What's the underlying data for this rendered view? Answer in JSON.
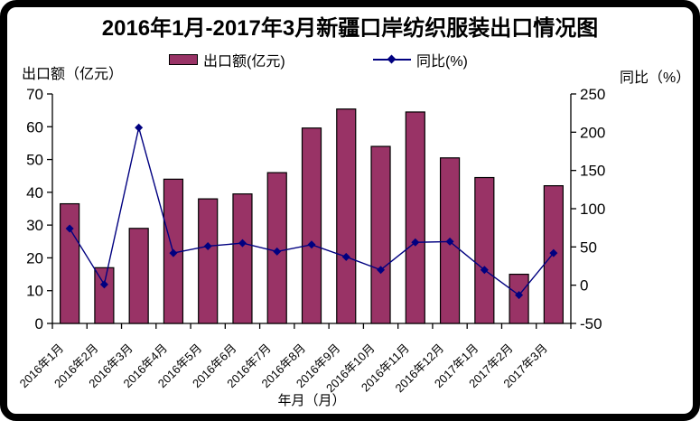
{
  "title": "2016年1月-2017年3月新疆口岸纺织服装出口情况图",
  "legend": {
    "bar_label": "出口额(亿元)",
    "line_label": "同比(%)"
  },
  "axis_titles": {
    "left": "出口额（亿元）",
    "right": "同比（%）",
    "x": "年月（月）"
  },
  "colors": {
    "bar_fill": "#993366",
    "bar_border": "#000000",
    "line": "#000080",
    "axis": "#000000",
    "text": "#000000",
    "frame": "#000000",
    "background": "#ffffff"
  },
  "chart_data": {
    "type": "bar+line",
    "title": "2016年1月-2017年3月新疆口岸纺织服装出口情况图",
    "categories": [
      "2016年1月",
      "2016年2月",
      "2016年3月",
      "2016年4月",
      "2016年5月",
      "2016年6月",
      "2016年7月",
      "2016年8月",
      "2016年9月",
      "2016年10月",
      "2016年11月",
      "2016年12月",
      "2017年1月",
      "2017年2月",
      "2017年3月"
    ],
    "series": [
      {
        "name": "出口额(亿元)",
        "type": "bar",
        "axis": "left",
        "values": [
          36.5,
          17,
          29,
          44,
          38,
          39.5,
          46,
          59.6,
          65.4,
          54,
          64.5,
          50.5,
          44.5,
          15,
          42
        ]
      },
      {
        "name": "同比(%)",
        "type": "line",
        "axis": "right",
        "marker": "diamond",
        "values": [
          74,
          1,
          206,
          42,
          51,
          55,
          44,
          53,
          37,
          20,
          56,
          57,
          20,
          -13,
          42
        ]
      }
    ],
    "left_axis": {
      "title": "出口额（亿元）",
      "min": 0,
      "max": 70,
      "step": 10
    },
    "right_axis": {
      "title": "同比（%）",
      "min": -50,
      "max": 250,
      "step": 50
    },
    "x_title": "年月（月）",
    "grid": false,
    "legend_position": "top"
  }
}
